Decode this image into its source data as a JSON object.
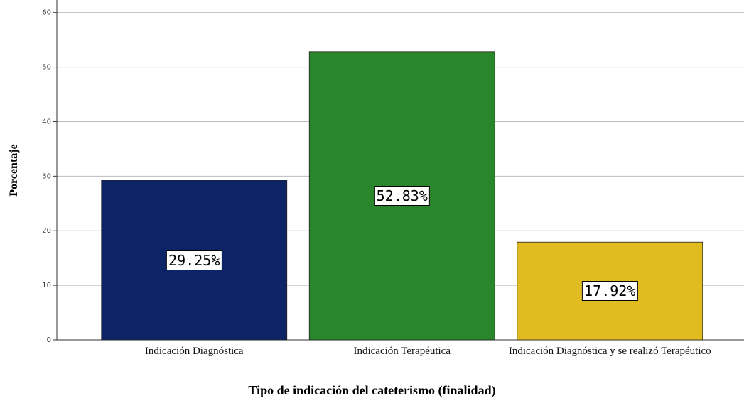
{
  "chart_data": {
    "type": "bar",
    "categories": [
      "Indicación Diagnóstica",
      "Indicación Terapéutica",
      "Indicación Diagnóstica y se realizó Terapéutico"
    ],
    "values": [
      29.25,
      52.83,
      17.92
    ],
    "value_labels": [
      "29.25%",
      "52.83%",
      "17.92%"
    ],
    "colors": [
      "#0c2466",
      "#2a862a",
      "#e0bc20"
    ],
    "ylim": [
      0,
      62.3
    ],
    "yticks": [
      0,
      10,
      20,
      30,
      40,
      50,
      60
    ],
    "grid": true,
    "ylabel": "Porcentaje",
    "xlabel": "Tipo de indicación del cateterismo (finalidad)"
  }
}
